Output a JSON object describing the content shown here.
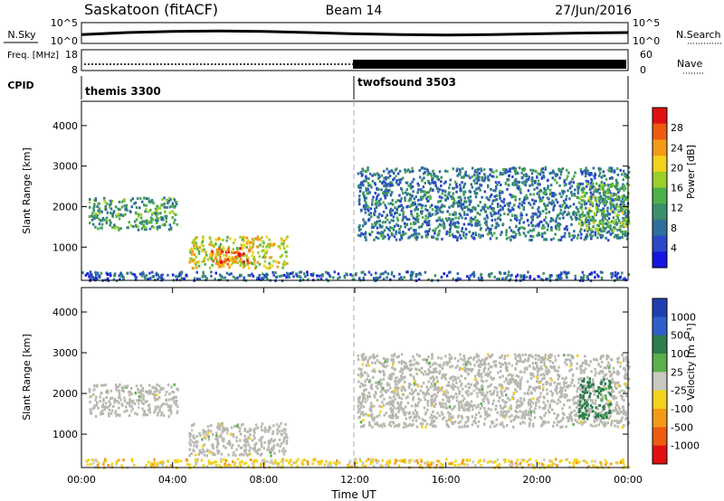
{
  "header": {
    "station": "Saskatoon (fitACF)",
    "beam": "Beam 14",
    "date": "27/Jun/2016"
  },
  "colors": {
    "power_scale": [
      "#1515e0",
      "#2a48c8",
      "#2f6f9e",
      "#3b8f6a",
      "#4fb04a",
      "#9ccf2a",
      "#f2d21b",
      "#f29a17",
      "#ee5a12",
      "#e01010"
    ],
    "velocity_scale": [
      "#1f3fb0",
      "#2f5fc8",
      "#2e7d4f",
      "#5ab04a",
      "#c8c8c0",
      "#f2d21b",
      "#f29a17",
      "#ee5a12",
      "#e01010"
    ],
    "ground_scatter": "#b8b8b0"
  },
  "chart_data": [
    {
      "type": "line",
      "panel": "noise",
      "left_label": "N.Sky",
      "right_label": "N.Search",
      "left_ticks": [
        "10^5",
        "10^0"
      ],
      "right_ticks": [
        "10^5",
        "10^0"
      ],
      "x": [
        "00:00",
        "02:00",
        "04:00",
        "06:00",
        "08:00",
        "10:00",
        "12:00",
        "14:00",
        "16:00",
        "18:00",
        "20:00",
        "22:00",
        "24:00"
      ],
      "series": [
        {
          "values": [
            2.1,
            2.6,
            2.9,
            3.0,
            2.9,
            2.6,
            2.3,
            2.1,
            2.0,
            2.1,
            2.3,
            2.5,
            2.6
          ]
        }
      ]
    },
    {
      "type": "line",
      "panel": "frequency",
      "left_label": "Freq. [MHz]",
      "right_label": "Nave",
      "left_ticks": [
        "18",
        "8"
      ],
      "right_ticks": [
        "60",
        "0"
      ],
      "x": [
        "00:00",
        "12:00",
        "24:00"
      ],
      "series": [
        {
          "values": [
            11,
            11,
            11
          ]
        }
      ]
    },
    {
      "type": "table",
      "panel": "cpid",
      "label": "CPID",
      "segments": [
        {
          "name": "themis 3300",
          "start": "00:00",
          "end": "12:00"
        },
        {
          "name": "twofsound 3503",
          "start": "12:00",
          "end": "24:00"
        }
      ]
    },
    {
      "type": "heatmap",
      "panel": "power",
      "ylabel": "Slant Range [km]",
      "xlabel": "",
      "yticks": [
        1000,
        2000,
        3000,
        4000
      ],
      "ylim": [
        180,
        4600
      ],
      "colorbar_label": "Power [dB]",
      "colorbar_ticks": [
        "4",
        "8",
        "12",
        "16",
        "20",
        "24",
        "28"
      ],
      "vmin": 0,
      "vmax": 32,
      "regions": [
        {
          "t0": 0.3,
          "t1": 4.2,
          "r0": 1450,
          "r1": 2250,
          "value": 12
        },
        {
          "t0": 4.7,
          "t1": 9.0,
          "r0": 500,
          "r1": 1300,
          "value": 20
        },
        {
          "t0": 5.6,
          "t1": 7.4,
          "r0": 600,
          "r1": 1000,
          "value": 28
        },
        {
          "t0": 12.1,
          "t1": 24.0,
          "r0": 1200,
          "r1": 3000,
          "value": 8
        },
        {
          "t0": 21.8,
          "t1": 24.0,
          "r0": 1400,
          "r1": 2600,
          "value": 14
        },
        {
          "t0": 0.0,
          "t1": 24.0,
          "r0": 200,
          "r1": 420,
          "value": 6
        }
      ]
    },
    {
      "type": "heatmap",
      "panel": "velocity",
      "ylabel": "Slant Range [km]",
      "xlabel": "Time UT",
      "yticks": [
        1000,
        2000,
        3000,
        4000
      ],
      "ylim": [
        180,
        4600
      ],
      "xticks": [
        "00:00",
        "04:00",
        "08:00",
        "12:00",
        "16:00",
        "20:00",
        "00:00"
      ],
      "colorbar_label": "Velocity [m s⁻¹]",
      "colorbar_ticks": [
        "1000",
        "500",
        "100",
        "25",
        "-25",
        "-100",
        "-500",
        "-1000"
      ],
      "regions": [
        {
          "t0": 0.3,
          "t1": 4.2,
          "r0": 1450,
          "r1": 2250,
          "value": 0
        },
        {
          "t0": 4.7,
          "t1": 9.0,
          "r0": 500,
          "r1": 1300,
          "value": 0
        },
        {
          "t0": 12.1,
          "t1": 24.0,
          "r0": 1200,
          "r1": 3000,
          "value": 0
        },
        {
          "t0": 21.8,
          "t1": 23.2,
          "r0": 1400,
          "r1": 2400,
          "value": 150
        },
        {
          "t0": 0.0,
          "t1": 24.0,
          "r0": 200,
          "r1": 420,
          "value": -60
        }
      ]
    }
  ]
}
